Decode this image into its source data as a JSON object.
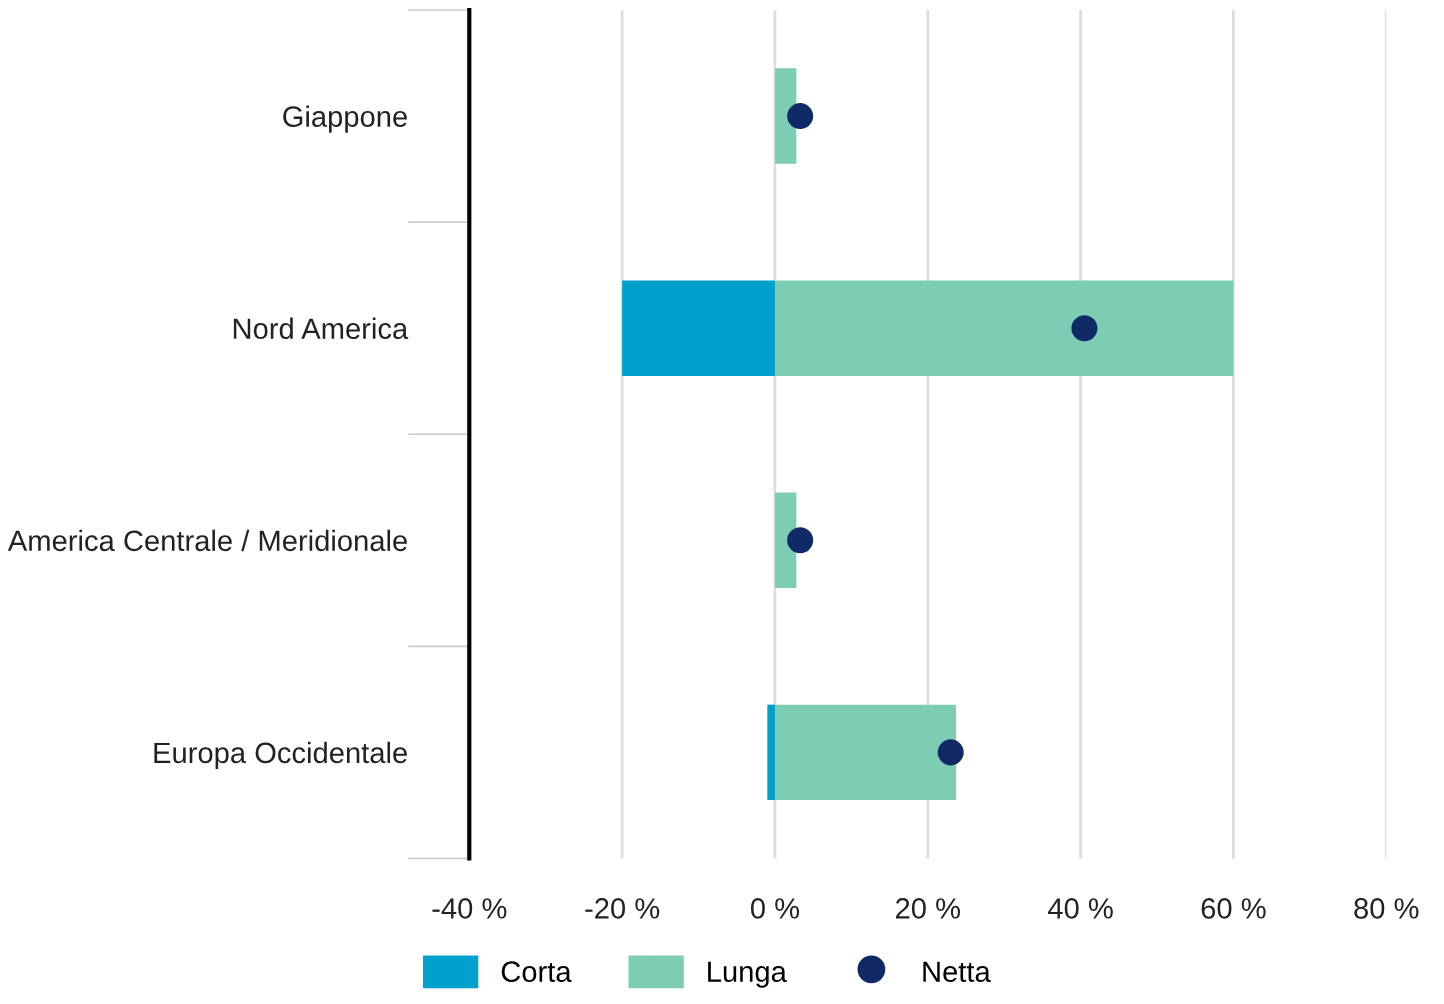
{
  "chart_data": {
    "type": "bar",
    "orientation": "horizontal",
    "stacked": true,
    "categories": [
      "Giappone",
      "Nord America",
      "America Centrale / Meridionale",
      "Europa Occidentale"
    ],
    "series": [
      {
        "name": "Corta",
        "color": "#00a0cc",
        "values": [
          0,
          -20,
          0,
          -1
        ]
      },
      {
        "name": "Lunga",
        "color": "#7dcdb4",
        "values": [
          2.8,
          60,
          2.8,
          23.7
        ]
      },
      {
        "name": "Netta",
        "color": "#0f2a66",
        "type": "scatter",
        "values": [
          3.3,
          40.5,
          3.3,
          23
        ]
      }
    ],
    "xlim": [
      -40,
      80
    ],
    "xticks": [
      {
        "value": -40,
        "label": "-40 %"
      },
      {
        "value": -20,
        "label": "-20 %"
      },
      {
        "value": 0,
        "label": "0 %"
      },
      {
        "value": 20,
        "label": "20 %"
      },
      {
        "value": 40,
        "label": "40 %"
      },
      {
        "value": 60,
        "label": "60 %"
      },
      {
        "value": 80,
        "label": "80 %"
      }
    ],
    "grid": "x",
    "legend": "bottom",
    "marker": "circle"
  }
}
